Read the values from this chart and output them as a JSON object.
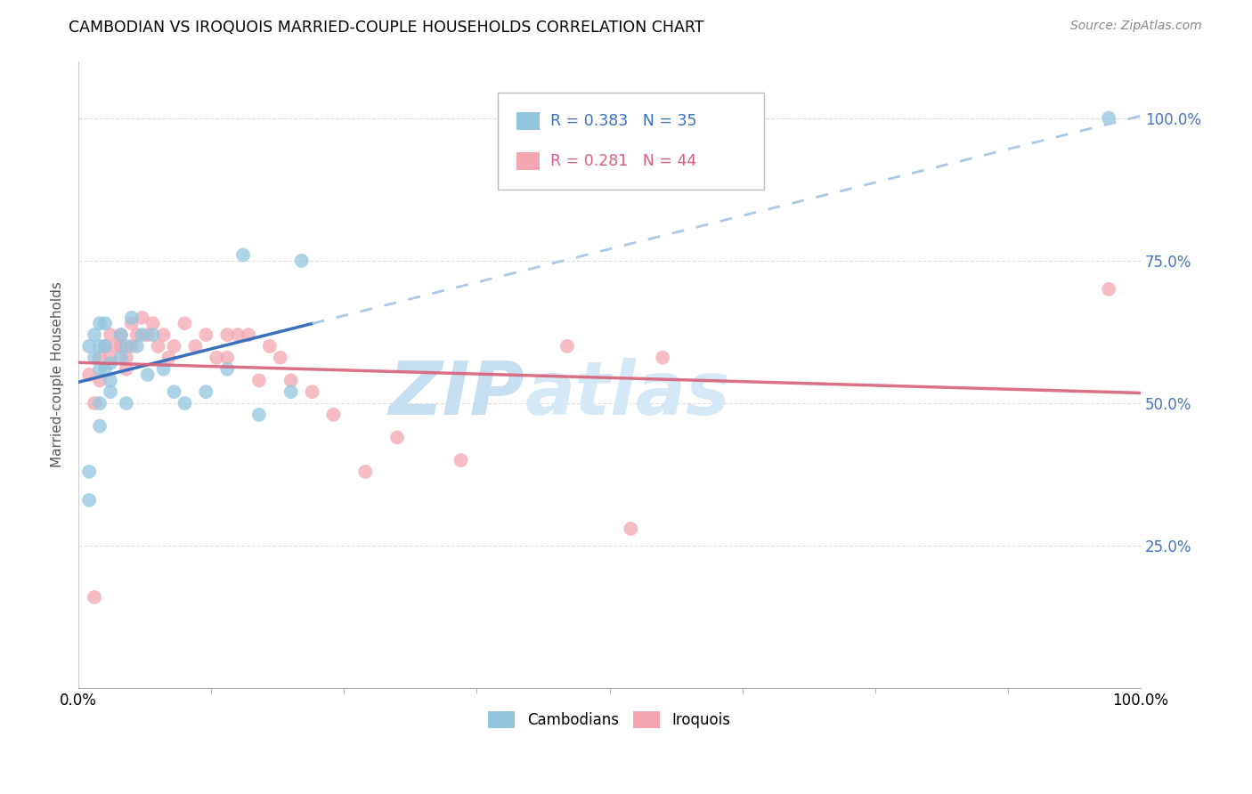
{
  "title": "CAMBODIAN VS IROQUOIS MARRIED-COUPLE HOUSEHOLDS CORRELATION CHART",
  "source": "Source: ZipAtlas.com",
  "ylabel": "Married-couple Households",
  "legend_cambodians": "Cambodians",
  "legend_iroquois": "Iroquois",
  "r_cambodian": 0.383,
  "n_cambodian": 35,
  "r_iroquois": 0.281,
  "n_iroquois": 44,
  "ytick_labels": [
    "25.0%",
    "50.0%",
    "75.0%",
    "100.0%"
  ],
  "ytick_values": [
    0.25,
    0.5,
    0.75,
    1.0
  ],
  "blue_color": "#92c5de",
  "pink_color": "#f4a6b0",
  "blue_line_color": "#3a6fbf",
  "pink_line_color": "#d9607a",
  "blue_dashed_color": "#aac8e8",
  "grid_color": "#dddddd",
  "cambodian_x": [
    0.01,
    0.01,
    0.01,
    0.015,
    0.015,
    0.02,
    0.02,
    0.02,
    0.02,
    0.02,
    0.025,
    0.025,
    0.025,
    0.03,
    0.03,
    0.03,
    0.04,
    0.04,
    0.045,
    0.045,
    0.05,
    0.055,
    0.06,
    0.065,
    0.07,
    0.08,
    0.09,
    0.1,
    0.12,
    0.14,
    0.155,
    0.17,
    0.2,
    0.21,
    0.97
  ],
  "cambodian_y": [
    0.38,
    0.33,
    0.6,
    0.62,
    0.58,
    0.6,
    0.64,
    0.56,
    0.5,
    0.46,
    0.64,
    0.6,
    0.56,
    0.57,
    0.54,
    0.52,
    0.62,
    0.58,
    0.6,
    0.5,
    0.65,
    0.6,
    0.62,
    0.55,
    0.62,
    0.56,
    0.52,
    0.5,
    0.52,
    0.56,
    0.76,
    0.48,
    0.52,
    0.75,
    1.0
  ],
  "iroquois_x": [
    0.01,
    0.015,
    0.02,
    0.02,
    0.025,
    0.03,
    0.03,
    0.035,
    0.04,
    0.04,
    0.045,
    0.045,
    0.05,
    0.05,
    0.055,
    0.06,
    0.065,
    0.07,
    0.075,
    0.08,
    0.085,
    0.09,
    0.1,
    0.11,
    0.12,
    0.13,
    0.14,
    0.14,
    0.15,
    0.16,
    0.17,
    0.18,
    0.19,
    0.2,
    0.22,
    0.24,
    0.27,
    0.3,
    0.36,
    0.46,
    0.52,
    0.55,
    0.97,
    0.015
  ],
  "iroquois_y": [
    0.55,
    0.5,
    0.58,
    0.54,
    0.6,
    0.62,
    0.58,
    0.6,
    0.62,
    0.6,
    0.58,
    0.56,
    0.64,
    0.6,
    0.62,
    0.65,
    0.62,
    0.64,
    0.6,
    0.62,
    0.58,
    0.6,
    0.64,
    0.6,
    0.62,
    0.58,
    0.62,
    0.58,
    0.62,
    0.62,
    0.54,
    0.6,
    0.58,
    0.54,
    0.52,
    0.48,
    0.38,
    0.44,
    0.4,
    0.6,
    0.28,
    0.58,
    0.7,
    0.16
  ]
}
